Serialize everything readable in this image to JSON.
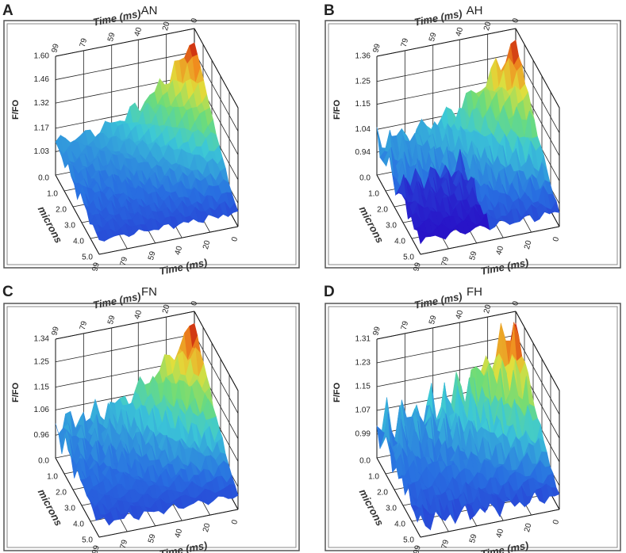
{
  "chart_data": [
    {
      "type": "surface",
      "panel": "A",
      "title": "AN",
      "zlabel": "F/FO",
      "xlabel": "Time (ms)",
      "ylabel": "microns",
      "xlim": [
        0,
        99
      ],
      "xticks": [
        0,
        20,
        40,
        59,
        79,
        99
      ],
      "ylim": [
        0,
        5
      ],
      "yticks": [
        {
          "value": 0,
          "label": "0.0"
        },
        {
          "value": 1,
          "label": "1.0"
        },
        {
          "value": 2,
          "label": "2.0"
        },
        {
          "value": 3,
          "label": "3.0"
        },
        {
          "value": 4,
          "label": "4.0"
        },
        {
          "value": 5,
          "label": "5.0"
        }
      ],
      "zlim": [
        0.89,
        1.6
      ],
      "zticks": [
        1.03,
        1.17,
        1.32,
        1.46,
        {
          "value": 1.6,
          "label": "1.60"
        }
      ]
    },
    {
      "type": "surface",
      "panel": "B",
      "title": "AH",
      "zlabel": "F/FO",
      "xlabel": "Time (ms)",
      "ylabel": "microns",
      "xlim": [
        0,
        99
      ],
      "xticks": [
        0,
        20,
        40,
        59,
        79,
        99
      ],
      "ylim": [
        0,
        5
      ],
      "yticks": [
        {
          "value": 0,
          "label": "0.0"
        },
        {
          "value": 1,
          "label": "1.0"
        },
        {
          "value": 2,
          "label": "2.0"
        },
        {
          "value": 3,
          "label": "3.0"
        },
        {
          "value": 4,
          "label": "4.0"
        },
        {
          "value": 5,
          "label": "5.0"
        }
      ],
      "zlim": [
        0.84,
        1.36
      ],
      "zticks": [
        0.94,
        1.04,
        1.15,
        1.25,
        1.36
      ]
    },
    {
      "type": "surface",
      "panel": "C",
      "title": "FN",
      "zlabel": "F/FO",
      "xlabel": "Time (ms)",
      "ylabel": "microns",
      "xlim": [
        0,
        99
      ],
      "xticks": [
        0,
        20,
        40,
        59,
        79,
        99
      ],
      "ylim": [
        0,
        5
      ],
      "yticks": [
        {
          "value": 0,
          "label": "0.0"
        },
        {
          "value": 1,
          "label": "1.0"
        },
        {
          "value": 2,
          "label": "2.0"
        },
        {
          "value": 3,
          "label": "3.0"
        },
        {
          "value": 4,
          "label": "4.0"
        },
        {
          "value": 5,
          "label": "5.0"
        }
      ],
      "zlim": [
        0.87,
        1.34
      ],
      "zticks": [
        0.96,
        1.06,
        1.15,
        1.25,
        1.34
      ]
    },
    {
      "type": "surface",
      "panel": "D",
      "title": "FH",
      "zlabel": "F/FO",
      "xlabel": "Time (ms)",
      "ylabel": "microns",
      "xlim": [
        0,
        99
      ],
      "xticks": [
        0,
        20,
        40,
        59,
        79,
        99
      ],
      "ylim": [
        0,
        5
      ],
      "yticks": [
        {
          "value": 0,
          "label": "0.0"
        },
        {
          "value": 1,
          "label": "1.0"
        },
        {
          "value": 2,
          "label": "2.0"
        },
        {
          "value": 3,
          "label": "3.0"
        },
        {
          "value": 4,
          "label": "4.0"
        },
        {
          "value": 5,
          "label": "5.0"
        }
      ],
      "zlim": [
        0.91,
        1.31
      ],
      "zticks": [
        0.99,
        1.07,
        1.15,
        1.23,
        1.31
      ]
    }
  ]
}
